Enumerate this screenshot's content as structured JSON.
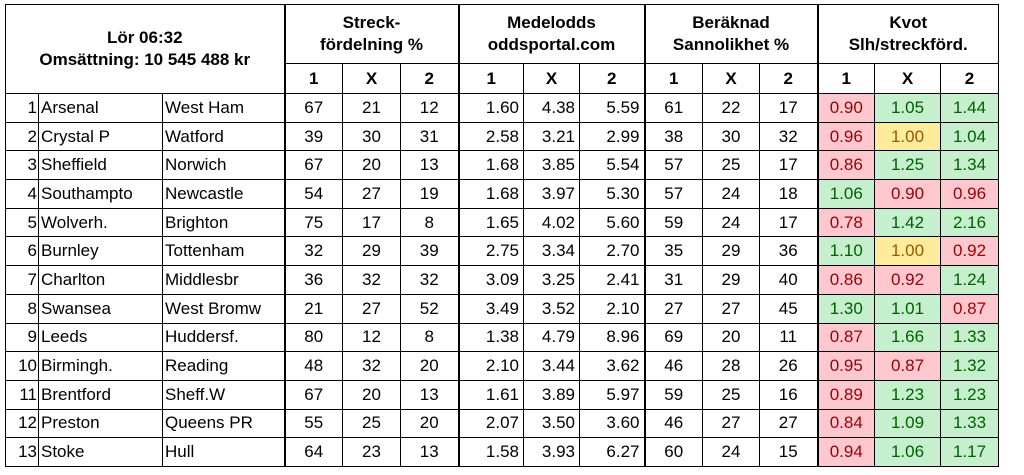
{
  "header": {
    "time": "Lör 06:32",
    "turnover": "Omsättning: 10 545 488 kr",
    "groups": [
      {
        "line1": "Streck-",
        "line2": "fördelning %"
      },
      {
        "line1": "Medelodds",
        "line2": "oddsportal.com"
      },
      {
        "line1": "Beräknad",
        "line2": "Sannolikhet %"
      },
      {
        "line1": "Kvot",
        "line2": "Slh/streckförd."
      }
    ],
    "sub": [
      "1",
      "X",
      "2"
    ]
  },
  "colors": {
    "good_bg": "#c6efce",
    "good_fg": "#006100",
    "bad_bg": "#ffc7ce",
    "bad_fg": "#9c0006",
    "even_bg": "#ffeb9c",
    "even_fg": "#9c5700"
  },
  "rows": [
    {
      "n": "1",
      "home": "Arsenal",
      "away": "West Ham",
      "s": [
        "67",
        "21",
        "12"
      ],
      "o": [
        "1.60",
        "4.38",
        "5.59"
      ],
      "p": [
        "61",
        "22",
        "17"
      ],
      "k": [
        "0.90",
        "1.05",
        "1.44"
      ],
      "kc": [
        "neg",
        "pos",
        "pos"
      ]
    },
    {
      "n": "2",
      "home": "Crystal P",
      "away": "Watford",
      "s": [
        "39",
        "30",
        "31"
      ],
      "o": [
        "2.58",
        "3.21",
        "2.99"
      ],
      "p": [
        "38",
        "30",
        "32"
      ],
      "k": [
        "0.96",
        "1.00",
        "1.04"
      ],
      "kc": [
        "neg",
        "mid",
        "pos"
      ]
    },
    {
      "n": "3",
      "home": "Sheffield",
      "away": "Norwich",
      "s": [
        "67",
        "20",
        "13"
      ],
      "o": [
        "1.68",
        "3.85",
        "5.54"
      ],
      "p": [
        "57",
        "25",
        "17"
      ],
      "k": [
        "0.86",
        "1.25",
        "1.34"
      ],
      "kc": [
        "neg",
        "pos",
        "pos"
      ]
    },
    {
      "n": "4",
      "home": "Southampto",
      "away": "Newcastle",
      "s": [
        "54",
        "27",
        "19"
      ],
      "o": [
        "1.68",
        "3.97",
        "5.30"
      ],
      "p": [
        "57",
        "24",
        "18"
      ],
      "k": [
        "1.06",
        "0.90",
        "0.96"
      ],
      "kc": [
        "pos",
        "neg",
        "neg"
      ]
    },
    {
      "n": "5",
      "home": "Wolverh.",
      "away": "Brighton",
      "s": [
        "75",
        "17",
        "8"
      ],
      "o": [
        "1.65",
        "4.02",
        "5.60"
      ],
      "p": [
        "59",
        "24",
        "17"
      ],
      "k": [
        "0.78",
        "1.42",
        "2.16"
      ],
      "kc": [
        "neg",
        "pos",
        "pos"
      ]
    },
    {
      "n": "6",
      "home": "Burnley",
      "away": "Tottenham",
      "s": [
        "32",
        "29",
        "39"
      ],
      "o": [
        "2.75",
        "3.34",
        "2.70"
      ],
      "p": [
        "35",
        "29",
        "36"
      ],
      "k": [
        "1.10",
        "1.00",
        "0.92"
      ],
      "kc": [
        "pos",
        "mid",
        "neg"
      ]
    },
    {
      "n": "7",
      "home": "Charlton",
      "away": "Middlesbr",
      "s": [
        "36",
        "32",
        "32"
      ],
      "o": [
        "3.09",
        "3.25",
        "2.41"
      ],
      "p": [
        "31",
        "29",
        "40"
      ],
      "k": [
        "0.86",
        "0.92",
        "1.24"
      ],
      "kc": [
        "neg",
        "neg",
        "pos"
      ]
    },
    {
      "n": "8",
      "home": "Swansea",
      "away": "West Bromw",
      "s": [
        "21",
        "27",
        "52"
      ],
      "o": [
        "3.49",
        "3.52",
        "2.10"
      ],
      "p": [
        "27",
        "27",
        "45"
      ],
      "k": [
        "1.30",
        "1.01",
        "0.87"
      ],
      "kc": [
        "pos",
        "pos",
        "neg"
      ]
    },
    {
      "n": "9",
      "home": "Leeds",
      "away": "Huddersf.",
      "s": [
        "80",
        "12",
        "8"
      ],
      "o": [
        "1.38",
        "4.79",
        "8.96"
      ],
      "p": [
        "69",
        "20",
        "11"
      ],
      "k": [
        "0.87",
        "1.66",
        "1.33"
      ],
      "kc": [
        "neg",
        "pos",
        "pos"
      ]
    },
    {
      "n": "10",
      "home": "Birmingh.",
      "away": "Reading",
      "s": [
        "48",
        "32",
        "20"
      ],
      "o": [
        "2.10",
        "3.44",
        "3.62"
      ],
      "p": [
        "46",
        "28",
        "26"
      ],
      "k": [
        "0.95",
        "0.87",
        "1.32"
      ],
      "kc": [
        "neg",
        "neg",
        "pos"
      ]
    },
    {
      "n": "11",
      "home": "Brentford",
      "away": "Sheff.W",
      "s": [
        "67",
        "20",
        "13"
      ],
      "o": [
        "1.61",
        "3.89",
        "5.97"
      ],
      "p": [
        "59",
        "25",
        "16"
      ],
      "k": [
        "0.89",
        "1.23",
        "1.23"
      ],
      "kc": [
        "neg",
        "pos",
        "pos"
      ]
    },
    {
      "n": "12",
      "home": "Preston",
      "away": "Queens PR",
      "s": [
        "55",
        "25",
        "20"
      ],
      "o": [
        "2.07",
        "3.50",
        "3.60"
      ],
      "p": [
        "46",
        "27",
        "27"
      ],
      "k": [
        "0.84",
        "1.09",
        "1.33"
      ],
      "kc": [
        "neg",
        "pos",
        "pos"
      ]
    },
    {
      "n": "13",
      "home": "Stoke",
      "away": "Hull",
      "s": [
        "64",
        "23",
        "13"
      ],
      "o": [
        "1.58",
        "3.93",
        "6.27"
      ],
      "p": [
        "60",
        "24",
        "15"
      ],
      "k": [
        "0.94",
        "1.06",
        "1.17"
      ],
      "kc": [
        "neg",
        "pos",
        "pos"
      ]
    }
  ]
}
